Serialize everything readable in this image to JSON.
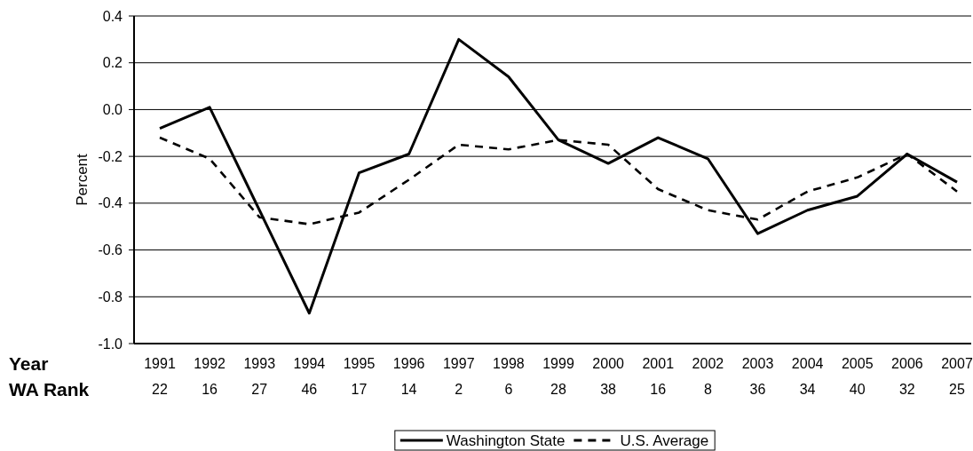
{
  "chart_data": {
    "type": "line",
    "categories": [
      "1991",
      "1992",
      "1993",
      "1994",
      "1995",
      "1996",
      "1997",
      "1998",
      "1999",
      "2000",
      "2001",
      "2002",
      "2003",
      "2004",
      "2005",
      "2006",
      "2007"
    ],
    "xlabel": "Year",
    "ylabel": "Percent",
    "series": [
      {
        "name": "Washington State",
        "color": "#000000",
        "line_style": "solid",
        "values": [
          -0.08,
          0.01,
          -0.43,
          -0.87,
          -0.27,
          -0.19,
          0.3,
          0.14,
          -0.13,
          -0.23,
          -0.12,
          -0.21,
          -0.53,
          -0.43,
          -0.37,
          -0.19,
          -0.31
        ]
      },
      {
        "name": "U.S. Average",
        "color": "#000000",
        "line_style": "dashed",
        "values": [
          -0.12,
          -0.21,
          -0.46,
          -0.49,
          -0.44,
          -0.3,
          -0.15,
          -0.17,
          -0.13,
          -0.15,
          -0.34,
          -0.43,
          -0.47,
          -0.35,
          -0.29,
          -0.19,
          -0.35
        ]
      }
    ],
    "ylim": [
      -1.0,
      0.4
    ],
    "yticks": [
      0.4,
      0.2,
      {
        "value": 0,
        "label": "0.0"
      },
      -0.2,
      -0.4,
      -0.6,
      -0.8,
      {
        "value": -1.0,
        "label": "-1.0"
      }
    ],
    "grid": "y",
    "legend": "bottom",
    "annotations": [
      "WA Rank",
      "22",
      "16",
      "27",
      "46",
      "17",
      "14",
      "2",
      "6",
      "28",
      "38",
      "16",
      "8",
      "36",
      "34",
      "40",
      "32",
      "25"
    ]
  }
}
